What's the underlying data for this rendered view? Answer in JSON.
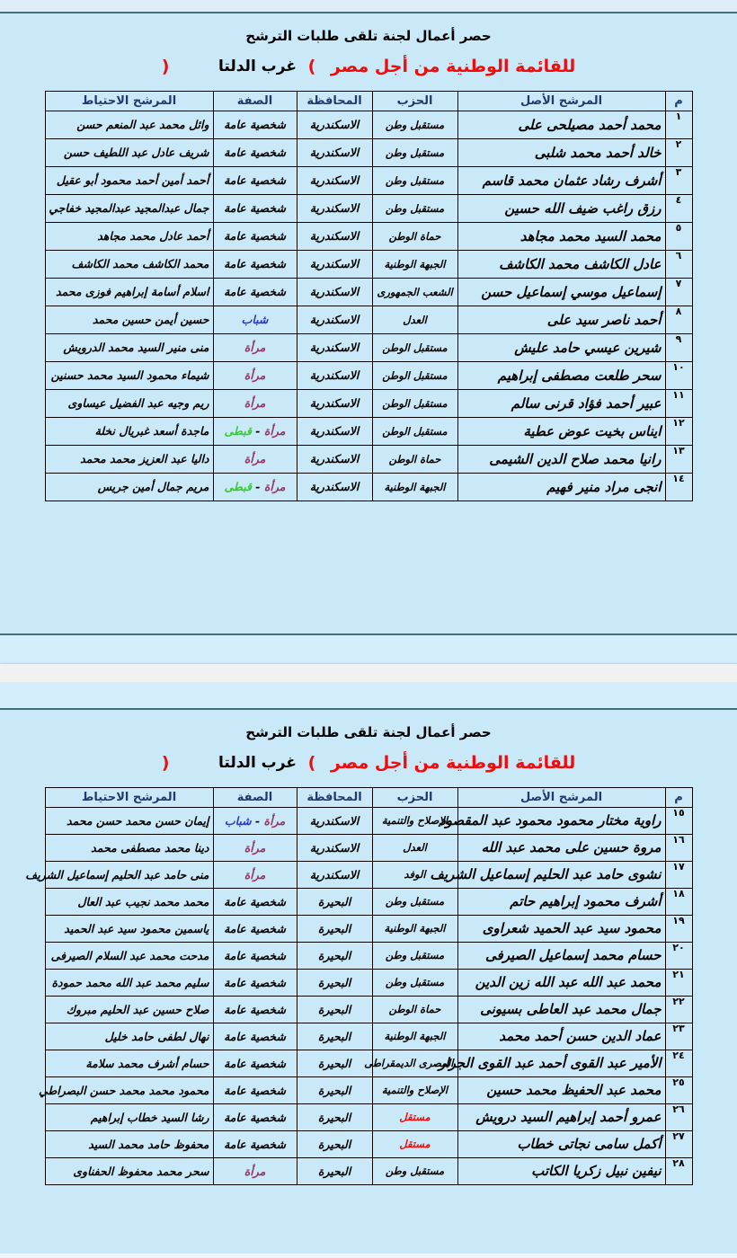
{
  "colors": {
    "black": "#000000",
    "purple": "#993366",
    "green": "#35cc33",
    "blue": "#2a3ac8",
    "red": "#f00c0c",
    "page_bg": "#c9e9f8",
    "page_border": "#42707e",
    "header_text": "#1f3a6e",
    "white_band": "#f1f1f2"
  },
  "page_header": {
    "title1": "حصر أعمال لجنة تلقى طلبات الترشح",
    "title2_main": "للقائمة الوطنية من أجل مصر",
    "paren_open": "(",
    "region": "غرب الدلتا",
    "paren_close": ")"
  },
  "table_headers": {
    "num": "م",
    "candidate": "المرشح الأصل",
    "party": "الحزب",
    "governorate": "المحافظة",
    "attribute": "الصفة",
    "reserve": "المرشح الاحتياط"
  },
  "pages": [
    {
      "rows": [
        {
          "num": "١",
          "candidate": "محمد أحمد مصيلحى على",
          "party": "مستقبل وطن",
          "governorate": "الاسكندرية",
          "attr": [
            [
              "شخصية عامة",
              "black"
            ]
          ],
          "reserve": "وائل محمد عبد المنعم حسن"
        },
        {
          "num": "٢",
          "candidate": "خالد أحمد محمد شلبى",
          "party": "مستقبل وطن",
          "governorate": "الاسكندرية",
          "attr": [
            [
              "شخصية عامة",
              "black"
            ]
          ],
          "reserve": "شريف عادل عبد اللطيف حسن"
        },
        {
          "num": "٣",
          "candidate": "أشرف رشاد عثمان محمد قاسم",
          "party": "مستقبل وطن",
          "governorate": "الاسكندرية",
          "attr": [
            [
              "شخصية عامة",
              "black"
            ]
          ],
          "reserve": "أحمد أمين أحمد محمود أبو عقيل"
        },
        {
          "num": "٤",
          "candidate": "رزق راغب ضيف الله حسين",
          "party": "مستقبل وطن",
          "governorate": "الاسكندرية",
          "attr": [
            [
              "شخصية عامة",
              "black"
            ]
          ],
          "reserve": "جمال عبدالمجيد عبدالمجيد خفاجي"
        },
        {
          "num": "٥",
          "candidate": "محمد السيد محمد مجاهد",
          "party": "حماة الوطن",
          "governorate": "الاسكندرية",
          "attr": [
            [
              "شخصية عامة",
              "black"
            ]
          ],
          "reserve": "أحمد عادل محمد مجاهد"
        },
        {
          "num": "٦",
          "candidate": "عادل الكاشف محمد الكاشف",
          "party": "الجبهة الوطنية",
          "governorate": "الاسكندرية",
          "attr": [
            [
              "شخصية عامة",
              "black"
            ]
          ],
          "reserve": "محمد الكاشف محمد الكاشف"
        },
        {
          "num": "٧",
          "candidate": "إسماعيل موسي إسماعيل حسن",
          "party": "الشعب الجمهورى",
          "governorate": "الاسكندرية",
          "attr": [
            [
              "شخصية عامة",
              "black"
            ]
          ],
          "reserve": "اسلام أسامة إبراهيم فوزى محمد"
        },
        {
          "num": "٨",
          "candidate": "أحمد ناصر سيد على",
          "party": "العدل",
          "governorate": "الاسكندرية",
          "attr": [
            [
              "شباب",
              "blue"
            ]
          ],
          "reserve": "حسين أيمن حسين محمد"
        },
        {
          "num": "٩",
          "candidate": "شيرين عيسي حامد عليش",
          "party": "مستقبل الوطن",
          "governorate": "الاسكندرية",
          "attr": [
            [
              "مرأة",
              "purple"
            ]
          ],
          "reserve": "منى منير السيد محمد الدرويش"
        },
        {
          "num": "١٠",
          "candidate": "سحر طلعت مصطفى إبراهيم",
          "party": "مستقبل الوطن",
          "governorate": "الاسكندرية",
          "attr": [
            [
              "مرأة",
              "purple"
            ]
          ],
          "reserve": "شيماء محمود السيد محمد حسنين"
        },
        {
          "num": "١١",
          "candidate": "عبير أحمد فؤاد قرنى سالم",
          "party": "مستقبل الوطن",
          "governorate": "الاسكندرية",
          "attr": [
            [
              "مرأة",
              "purple"
            ]
          ],
          "reserve": "ريم وجيه عبد الفضيل عيساوى"
        },
        {
          "num": "١٢",
          "candidate": "ايناس بخيت عوض عطية",
          "party": "مستقبل الوطن",
          "governorate": "الاسكندرية",
          "attr": [
            [
              "مرأة",
              "purple"
            ],
            [
              " - ",
              "black"
            ],
            [
              "قبطى",
              "green"
            ]
          ],
          "reserve": "ماجدة أسعد غبريال نخلة"
        },
        {
          "num": "١٣",
          "candidate": "رانيا محمد صلاح الدين الشيمى",
          "party": "حماة الوطن",
          "governorate": "الاسكندرية",
          "attr": [
            [
              "مرأة",
              "purple"
            ]
          ],
          "reserve": "داليا عبد العزيز محمد محمد"
        },
        {
          "num": "١٤",
          "candidate": "انجى مراد منير فهيم",
          "party": "الجبهة الوطنية",
          "governorate": "الاسكندرية",
          "attr": [
            [
              "مرأة",
              "purple"
            ],
            [
              " - ",
              "black"
            ],
            [
              "قبطى",
              "green"
            ]
          ],
          "reserve": "مريم جمال أمين جريس"
        }
      ]
    },
    {
      "rows": [
        {
          "num": "١٥",
          "candidate": "راوية مختار محمود محمود عبد المقصود",
          "party": "الإصلاح والتنمية",
          "governorate": "الاسكندرية",
          "attr": [
            [
              "مرأة",
              "purple"
            ],
            [
              " - ",
              "black"
            ],
            [
              "شباب",
              "blue"
            ]
          ],
          "reserve": "إيمان حسن محمد حسن محمد"
        },
        {
          "num": "١٦",
          "candidate": "مروة حسين على محمد عبد الله",
          "party": "العدل",
          "governorate": "الاسكندرية",
          "attr": [
            [
              "مرأة",
              "purple"
            ]
          ],
          "reserve": "دينا محمد مصطفى محمد"
        },
        {
          "num": "١٧",
          "candidate": "نشوى حامد عبد الحليم إسماعيل الشريف",
          "party": "الوفد",
          "governorate": "الاسكندرية",
          "attr": [
            [
              "مرأة",
              "purple"
            ]
          ],
          "reserve": "منى حامد عبد الحليم إسماعيل الشريف"
        },
        {
          "num": "١٨",
          "candidate": "أشرف محمود إبراهيم حاتم",
          "party": "مستقبل وطن",
          "governorate": "البحيرة",
          "attr": [
            [
              "شخصية عامة",
              "black"
            ]
          ],
          "reserve": "محمد محمد نجيب عبد العال"
        },
        {
          "num": "١٩",
          "candidate": "محمود سيد عبد الحميد شعراوى",
          "party": "الجبهة الوطنية",
          "governorate": "البحيرة",
          "attr": [
            [
              "شخصية عامة",
              "black"
            ]
          ],
          "reserve": "ياسمين محمود سيد عبد الحميد"
        },
        {
          "num": "٢٠",
          "candidate": "حسام محمد إسماعيل الصيرفى",
          "party": "مستقبل وطن",
          "governorate": "البحيرة",
          "attr": [
            [
              "شخصية عامة",
              "black"
            ]
          ],
          "reserve": "مدحت محمد عبد السلام الصيرفى"
        },
        {
          "num": "٢١",
          "candidate": "محمد عبد الله عبد الله زين الدين",
          "party": "مستقبل وطن",
          "governorate": "البحيرة",
          "attr": [
            [
              "شخصية عامة",
              "black"
            ]
          ],
          "reserve": "سليم محمد عبد الله محمد حمودة"
        },
        {
          "num": "٢٢",
          "candidate": "جمال محمد عبد العاطى بسيونى",
          "party": "حماة الوطن",
          "governorate": "البحيرة",
          "attr": [
            [
              "شخصية عامة",
              "black"
            ]
          ],
          "reserve": "صلاح حسين عبد الحليم مبروك"
        },
        {
          "num": "٢٣",
          "candidate": "عماد الدين حسن أحمد محمد",
          "party": "الجبهة الوطنية",
          "governorate": "البحيرة",
          "attr": [
            [
              "شخصية عامة",
              "black"
            ]
          ],
          "reserve": "نهال لطفى حامد خليل"
        },
        {
          "num": "٢٤",
          "candidate": "الأمير عبد القوى أحمد عبد القوى الجرار",
          "party": "المصرى الديمقراطى",
          "governorate": "البحيرة",
          "attr": [
            [
              "شخصية عامة",
              "black"
            ]
          ],
          "reserve": "حسام أشرف محمد سلامة"
        },
        {
          "num": "٢٥",
          "candidate": "محمد عبد الحفيظ محمد حسين",
          "party": "الإصلاح والتنمية",
          "governorate": "البحيرة",
          "attr": [
            [
              "شخصية عامة",
              "black"
            ]
          ],
          "reserve": "محمود محمد محمد حسن البصراطي"
        },
        {
          "num": "٢٦",
          "candidate": "عمرو أحمد إبراهيم السيد درويش",
          "party": "مستقل",
          "party_color": "red",
          "governorate": "البحيرة",
          "attr": [
            [
              "شخصية عامة",
              "black"
            ]
          ],
          "reserve": "رشا السيد خطاب إبراهيم"
        },
        {
          "num": "٢٧",
          "candidate": "أكمل سامى نجاتى خطاب",
          "party": "مستقل",
          "party_color": "red",
          "governorate": "البحيرة",
          "attr": [
            [
              "شخصية عامة",
              "black"
            ]
          ],
          "reserve": "محفوظ حامد محمد السيد"
        },
        {
          "num": "٢٨",
          "candidate": "نيفين نبيل زكريا الكاتب",
          "party": "مستقبل وطن",
          "governorate": "البحيرة",
          "attr": [
            [
              "مرأة",
              "purple"
            ]
          ],
          "reserve": "سحر محمد محفوظ الحفناوى"
        }
      ]
    }
  ]
}
